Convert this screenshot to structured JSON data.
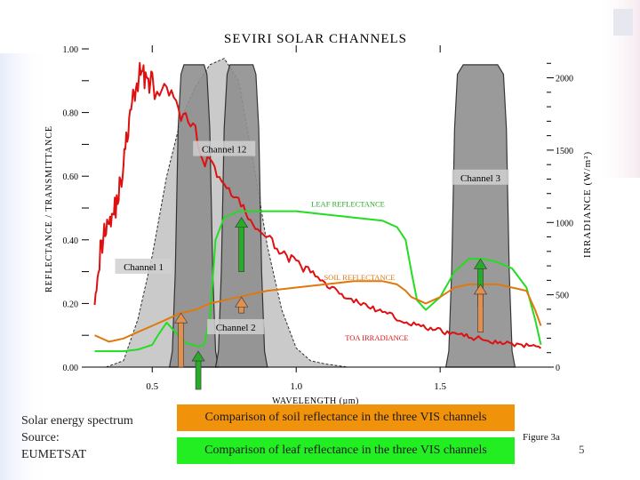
{
  "chart_data": {
    "type": "line",
    "title": "SEVIRI SOLAR CHANNELS",
    "xlabel": "WAVELENGTH (µm)",
    "ylabel_left": "REFLECTANCE / TRANSMITTANCE",
    "ylabel_right": "IRRADIANCE (W/m²)",
    "xlim": [
      0.28,
      1.87
    ],
    "ylim_left": [
      0.0,
      1.0
    ],
    "ylim_right": [
      0,
      2200
    ],
    "x_ticks": [
      {
        "value": 0.5,
        "label": "0.5"
      },
      {
        "value": 1.0,
        "label": "1.0"
      },
      {
        "value": 1.5,
        "label": "1.5"
      }
    ],
    "y_ticks_left": [
      {
        "value": 0.0,
        "label": "0.00"
      },
      {
        "value": 0.2,
        "label": "0.20"
      },
      {
        "value": 0.4,
        "label": "0.40"
      },
      {
        "value": 0.6,
        "label": "0.60"
      },
      {
        "value": 0.8,
        "label": "0.80"
      },
      {
        "value": 1.0,
        "label": "1.00"
      }
    ],
    "y_ticks_right": [
      {
        "value": 0,
        "label": "0"
      },
      {
        "value": 500,
        "label": "500"
      },
      {
        "value": 1000,
        "label": "1000"
      },
      {
        "value": 1500,
        "label": "1500"
      },
      {
        "value": 2000,
        "label": "2000"
      }
    ],
    "channels": [
      {
        "name": "Channel 12",
        "label": "Channel 12",
        "x": [
          0.34,
          0.4,
          0.45,
          0.5,
          0.55,
          0.6,
          0.65,
          0.7,
          0.75,
          0.8,
          0.85,
          0.9,
          0.95,
          1.0,
          1.05,
          1.1,
          1.14,
          1.18
        ],
        "y": [
          0.0,
          0.02,
          0.15,
          0.35,
          0.6,
          0.78,
          0.88,
          0.95,
          0.97,
          0.9,
          0.65,
          0.38,
          0.18,
          0.06,
          0.02,
          0.01,
          0.005,
          0.0
        ],
        "color": "#c8c8c8"
      },
      {
        "name": "Channel 1",
        "label": "Channel 1",
        "x": [
          0.56,
          0.57,
          0.58,
          0.59,
          0.6,
          0.61,
          0.68,
          0.69,
          0.7,
          0.71,
          0.72,
          0.73
        ],
        "y": [
          0.0,
          0.05,
          0.3,
          0.75,
          0.92,
          0.95,
          0.95,
          0.92,
          0.75,
          0.3,
          0.05,
          0.0
        ],
        "color": "#909090"
      },
      {
        "name": "Channel 2",
        "label": "Channel 2",
        "x": [
          0.72,
          0.73,
          0.74,
          0.75,
          0.76,
          0.77,
          0.85,
          0.86,
          0.87,
          0.88,
          0.89,
          0.9
        ],
        "y": [
          0.0,
          0.05,
          0.3,
          0.75,
          0.92,
          0.95,
          0.95,
          0.92,
          0.75,
          0.3,
          0.05,
          0.0
        ],
        "color": "#909090"
      },
      {
        "name": "Channel 3",
        "label": "Channel 3",
        "x": [
          1.52,
          1.53,
          1.54,
          1.55,
          1.56,
          1.58,
          1.7,
          1.72,
          1.73,
          1.74,
          1.75,
          1.76
        ],
        "y": [
          0.0,
          0.05,
          0.3,
          0.75,
          0.92,
          0.95,
          0.95,
          0.92,
          0.75,
          0.3,
          0.05,
          0.0
        ],
        "color": "#909090"
      }
    ],
    "series": [
      {
        "name": "TOA IRRADIANCE",
        "axis": "right",
        "color": "#dd1111",
        "x": [
          0.3,
          0.32,
          0.34,
          0.36,
          0.38,
          0.4,
          0.42,
          0.44,
          0.46,
          0.48,
          0.5,
          0.55,
          0.6,
          0.65,
          0.7,
          0.75,
          0.8,
          0.85,
          0.9,
          0.95,
          1.0,
          1.05,
          1.1,
          1.15,
          1.2,
          1.25,
          1.3,
          1.35,
          1.4,
          1.45,
          1.5,
          1.55,
          1.6,
          1.65,
          1.7,
          1.75,
          1.8,
          1.85
        ],
        "y": [
          520,
          800,
          1000,
          1050,
          1150,
          1400,
          1700,
          1900,
          2050,
          2000,
          1950,
          1880,
          1760,
          1580,
          1420,
          1270,
          1140,
          990,
          890,
          800,
          720,
          650,
          580,
          510,
          460,
          420,
          380,
          340,
          300,
          270,
          250,
          230,
          210,
          190,
          175,
          160,
          145,
          130
        ]
      },
      {
        "name": "LEAF REFLECTANCE",
        "axis": "left",
        "color": "#22dd22",
        "x": [
          0.3,
          0.35,
          0.4,
          0.45,
          0.5,
          0.52,
          0.55,
          0.58,
          0.62,
          0.66,
          0.68,
          0.7,
          0.72,
          0.75,
          0.8,
          0.9,
          1.0,
          1.1,
          1.2,
          1.3,
          1.35,
          1.38,
          1.4,
          1.42,
          1.45,
          1.5,
          1.55,
          1.6,
          1.65,
          1.7,
          1.75,
          1.8,
          1.83,
          1.85
        ],
        "y": [
          0.05,
          0.05,
          0.05,
          0.055,
          0.07,
          0.1,
          0.14,
          0.11,
          0.075,
          0.065,
          0.07,
          0.15,
          0.4,
          0.47,
          0.49,
          0.49,
          0.49,
          0.48,
          0.47,
          0.46,
          0.44,
          0.4,
          0.3,
          0.21,
          0.18,
          0.22,
          0.3,
          0.34,
          0.34,
          0.33,
          0.31,
          0.25,
          0.15,
          0.07
        ]
      },
      {
        "name": "SOIL REFLECTANCE",
        "axis": "left",
        "color": "#e07810",
        "x": [
          0.3,
          0.35,
          0.4,
          0.45,
          0.5,
          0.55,
          0.6,
          0.65,
          0.7,
          0.75,
          0.8,
          0.9,
          1.0,
          1.1,
          1.2,
          1.3,
          1.35,
          1.38,
          1.4,
          1.45,
          1.5,
          1.55,
          1.6,
          1.65,
          1.7,
          1.75,
          1.8,
          1.83,
          1.85
        ],
        "y": [
          0.1,
          0.08,
          0.09,
          0.11,
          0.13,
          0.15,
          0.17,
          0.18,
          0.2,
          0.21,
          0.22,
          0.24,
          0.25,
          0.26,
          0.27,
          0.27,
          0.26,
          0.24,
          0.22,
          0.2,
          0.22,
          0.25,
          0.26,
          0.26,
          0.26,
          0.25,
          0.24,
          0.18,
          0.13
        ]
      }
    ],
    "annotations": [
      {
        "text": "Channel 12",
        "x": 0.75,
        "y": 0.68
      },
      {
        "text": "Channel 3",
        "x": 1.64,
        "y": 0.59
      },
      {
        "text": "Channel 1",
        "x": 0.47,
        "y": 0.31
      },
      {
        "text": "Channel 2",
        "x": 0.79,
        "y": 0.12
      },
      {
        "text": "LEAF REFLECTANCE",
        "x": 1.18,
        "y": 0.51
      },
      {
        "text": "SOIL REFLECTANCE",
        "x": 1.22,
        "y": 0.28
      },
      {
        "text": "TOA IRRADIANCE",
        "x": 1.28,
        "y": 0.09
      }
    ],
    "arrows": [
      {
        "color": "#2aaa2a",
        "x": 0.66,
        "y_from": -0.07,
        "y_to": 0.05
      },
      {
        "color": "#e09050",
        "x": 0.6,
        "y_from": 0.0,
        "y_to": 0.17
      },
      {
        "color": "#2aaa2a",
        "x": 0.81,
        "y_from": 0.3,
        "y_to": 0.47
      },
      {
        "color": "#e09050",
        "x": 0.81,
        "y_from": 0.17,
        "y_to": 0.22
      },
      {
        "color": "#2aaa2a",
        "x": 1.64,
        "y_from": 0.19,
        "y_to": 0.34
      },
      {
        "color": "#e09050",
        "x": 1.64,
        "y_from": 0.11,
        "y_to": 0.26
      }
    ],
    "grid": false,
    "legend": "none"
  },
  "caption": {
    "line1": "Solar energy spectrum",
    "line2": "Source:",
    "line3": "EUMETSAT"
  },
  "boxes": {
    "soil": "Comparison of soil reflectance in the three VIS channels",
    "leaf": "Comparison of leaf reflectance in the three VIS channels"
  },
  "figure_label": "Figure 3a",
  "slide_number": "5",
  "colors": {
    "orange_box": "#f0920a",
    "green_box": "#22ee22"
  }
}
